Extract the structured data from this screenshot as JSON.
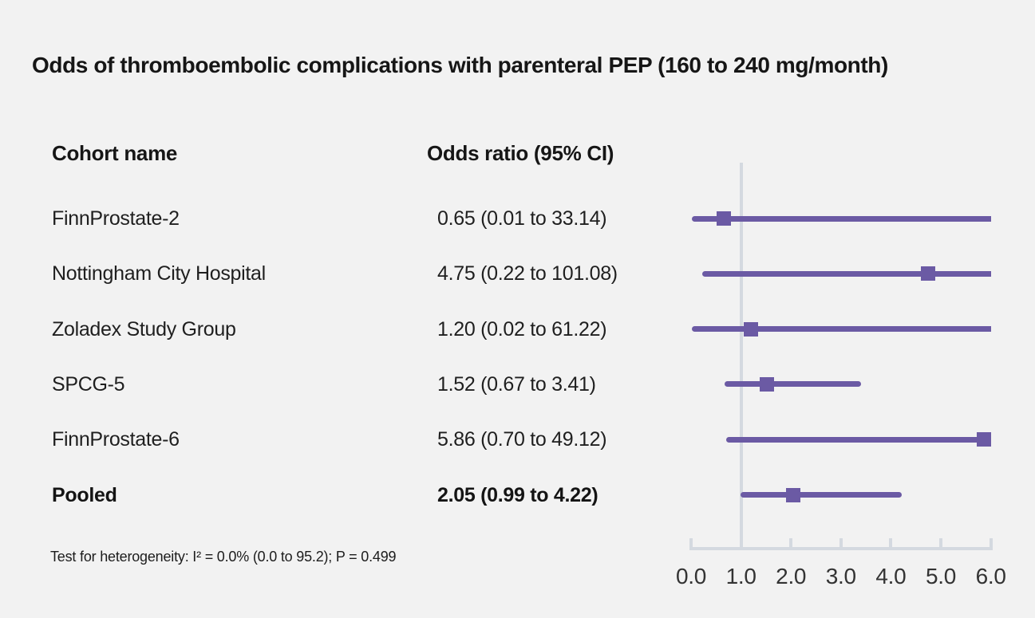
{
  "title": "Odds of thromboembolic complications with parenteral PEP (160 to 240 mg/month)",
  "columns": {
    "cohort": "Cohort name",
    "or": "Odds ratio (95% CI)"
  },
  "footnote": "Test for heterogeneity: I² = 0.0% (0.0 to 95.2); P = 0.499",
  "chart_data": {
    "type": "forest",
    "title": "Odds of thromboembolic complications with parenteral PEP (160 to 240 mg/month)",
    "x_axis": {
      "min": 0.0,
      "max": 6.0,
      "ticks": [
        0.0,
        1.0,
        2.0,
        3.0,
        4.0,
        5.0,
        6.0
      ],
      "tick_labels": [
        "0.0",
        "1.0",
        "2.0",
        "3.0",
        "4.0",
        "5.0",
        "6.0"
      ],
      "reference_line": 1.0,
      "grid": false
    },
    "rows": [
      {
        "label": "FinnProstate-2",
        "or_text": "0.65 (0.01 to 33.14)",
        "or": 0.65,
        "ci_low": 0.01,
        "ci_high": 33.14,
        "bold": false
      },
      {
        "label": "Nottingham City Hospital",
        "or_text": "4.75 (0.22 to 101.08)",
        "or": 4.75,
        "ci_low": 0.22,
        "ci_high": 101.08,
        "bold": false
      },
      {
        "label": "Zoladex Study Group",
        "or_text": "1.20 (0.02 to 61.22)",
        "or": 1.2,
        "ci_low": 0.02,
        "ci_high": 61.22,
        "bold": false
      },
      {
        "label": "SPCG-5",
        "or_text": "1.52 (0.67 to 3.41)",
        "or": 1.52,
        "ci_low": 0.67,
        "ci_high": 3.41,
        "bold": false
      },
      {
        "label": "FinnProstate-6",
        "or_text": "5.86 (0.70 to 49.12)",
        "or": 5.86,
        "ci_low": 0.7,
        "ci_high": 49.12,
        "bold": false
      },
      {
        "label": "Pooled",
        "or_text": "2.05 (0.99 to 4.22)",
        "or": 2.05,
        "ci_low": 0.99,
        "ci_high": 4.22,
        "bold": true
      }
    ],
    "heterogeneity": "Test for heterogeneity: I² = 0.0% (0.0 to 95.2); P = 0.499"
  },
  "colors": {
    "background": "#f2f2f2",
    "marker_purple": "#6b5aa4",
    "reference_line": "#d4d9e0",
    "axis_line": "#d4d9e0",
    "text_dark": "#161616"
  }
}
